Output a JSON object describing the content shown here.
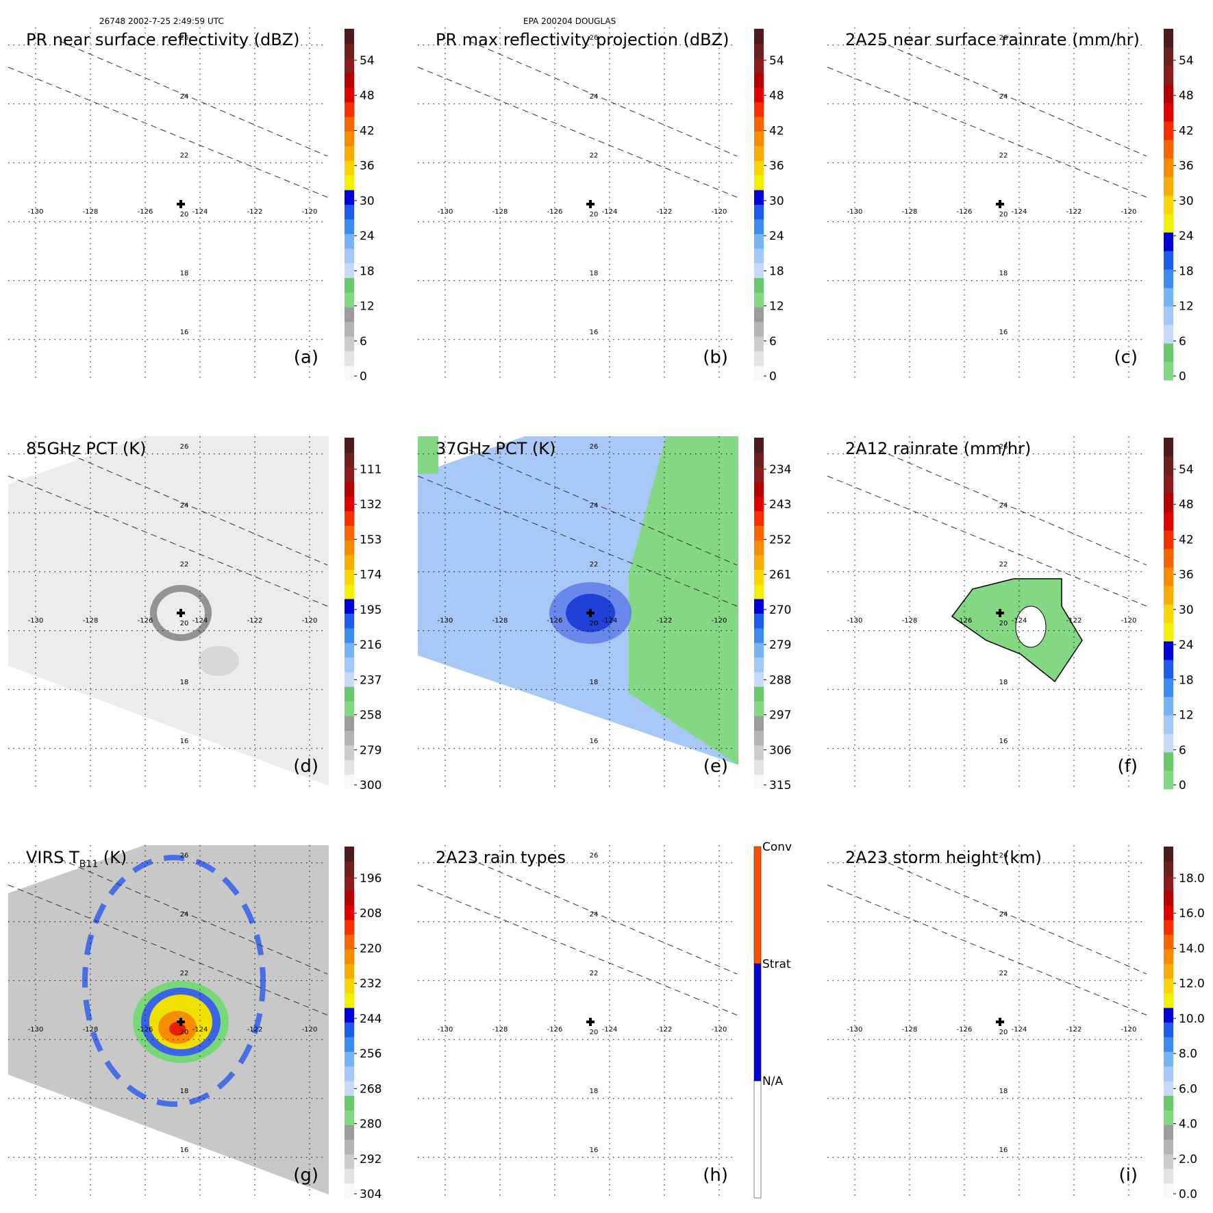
{
  "header": {
    "orbit_time": "26748 2002-7-25 2:49:59 UTC",
    "storm": "EPA 200204 DOUGLAS"
  },
  "center_marker": "plus-icon",
  "panels": [
    {
      "id": "a",
      "title": "PR near surface reflectivity (dBZ)",
      "label": "(a)",
      "field": "blank",
      "colorbar": {
        "type": "reflectivity",
        "ticks": [
          "54",
          "48",
          "42",
          "36",
          "30",
          "24",
          "18",
          "12",
          "6",
          "0"
        ]
      }
    },
    {
      "id": "b",
      "title": "PR max reflectivity projection (dBZ)",
      "label": "(b)",
      "field": "blank",
      "colorbar": {
        "type": "reflectivity",
        "ticks": [
          "54",
          "48",
          "42",
          "36",
          "30",
          "24",
          "18",
          "12",
          "6",
          "0"
        ]
      }
    },
    {
      "id": "c",
      "title": "2A25 near surface rainrate (mm/hr)",
      "label": "(c)",
      "field": "blank",
      "colorbar": {
        "type": "rainrate",
        "ticks": [
          "54",
          "48",
          "42",
          "36",
          "30",
          "24",
          "18",
          "12",
          "6",
          "0"
        ]
      }
    },
    {
      "id": "d",
      "title": "85GHz PCT (K)",
      "label": "(d)",
      "field": "pct85",
      "colorbar": {
        "type": "reflectivity",
        "ticks": [
          "111",
          "132",
          "153",
          "174",
          "195",
          "216",
          "237",
          "258",
          "279",
          "300"
        ]
      }
    },
    {
      "id": "e",
      "title": "37GHz PCT (K)",
      "label": "(e)",
      "field": "pct37",
      "colorbar": {
        "type": "reflectivity",
        "ticks": [
          "234",
          "243",
          "252",
          "261",
          "270",
          "279",
          "288",
          "297",
          "306",
          "315"
        ]
      }
    },
    {
      "id": "f",
      "title": "2A12 rainrate (mm/hr)",
      "label": "(f)",
      "field": "rain2a12",
      "colorbar": {
        "type": "rainrate",
        "ticks": [
          "54",
          "48",
          "42",
          "36",
          "30",
          "24",
          "18",
          "12",
          "6",
          "0"
        ]
      }
    },
    {
      "id": "g",
      "title": "VIRS T",
      "title_sub": "B11",
      "title_after": " (K)",
      "label": "(g)",
      "field": "virs",
      "colorbar": {
        "type": "reflectivity",
        "ticks": [
          "196",
          "208",
          "220",
          "232",
          "244",
          "256",
          "268",
          "280",
          "292",
          "304"
        ]
      }
    },
    {
      "id": "h",
      "title": "2A23 rain types",
      "label": "(h)",
      "field": "blank",
      "colorbar": {
        "type": "raintype",
        "ticks": [
          "Conv",
          "Strat",
          "N/A"
        ]
      }
    },
    {
      "id": "i",
      "title": "2A23 storm height (km)",
      "label": "(i)",
      "field": "blank",
      "colorbar": {
        "type": "height",
        "ticks": [
          "18.0",
          "16.0",
          "14.0",
          "12.0",
          "10.0",
          "8.0",
          "6.0",
          "4.0",
          "2.0",
          "0.0"
        ]
      }
    }
  ],
  "axes": {
    "lon_ticks": [
      "-130",
      "-128",
      "-126",
      "-124",
      "-122",
      "-120"
    ],
    "lat_ticks": [
      "26",
      "24",
      "22",
      "20",
      "18",
      "16"
    ]
  },
  "colors": {
    "reflectivity": [
      "#f8f8f8",
      "#e4e4e4",
      "#cccccc",
      "#b4b4b4",
      "#9c9c9c",
      "#84d884",
      "#6cc86c",
      "#c8d8f8",
      "#a4c8f8",
      "#78b4f4",
      "#3c8cf0",
      "#1e5aec",
      "#0000d8",
      "#f0f000",
      "#f8d400",
      "#f8ac00",
      "#f88c00",
      "#f86400",
      "#f83000",
      "#e00000",
      "#b40000",
      "#8c1c1c",
      "#6c2020",
      "#4c1c1c"
    ],
    "rainrate": [
      "#84d884",
      "#6cc86c",
      "#c8d8f8",
      "#a4c8f8",
      "#78b4f4",
      "#3c8cf0",
      "#1e5aec",
      "#0000d8",
      "#f0f000",
      "#f8d400",
      "#f8ac00",
      "#f88c00",
      "#f86400",
      "#f83000",
      "#e00000",
      "#b40000",
      "#8c1c1c",
      "#6c2020",
      "#4c1c1c"
    ],
    "height": [
      "#f8f8f8",
      "#e4e4e4",
      "#cccccc",
      "#b4b4b4",
      "#9c9c9c",
      "#84d884",
      "#6cc86c",
      "#c8d8f8",
      "#a4c8f8",
      "#78b4f4",
      "#3c8cf0",
      "#1e5aec",
      "#0000d8",
      "#f0f000",
      "#f8d400",
      "#f8ac00",
      "#f88c00",
      "#f86400",
      "#f83000",
      "#e00000",
      "#b40000",
      "#8c1c1c",
      "#6c2020",
      "#4c1c1c"
    ],
    "raintype": [
      "#ffffff",
      "#0000e0",
      "#ff5000"
    ],
    "pct37_field": "#a8c8f8",
    "pct37_core": "#2040d8",
    "pct37_green": "#84d884",
    "pct85_field": "#ececec",
    "pct85_core": "#9a9a9a",
    "virs_field": "#c8c8c8",
    "virs_blue": "#3c64e8",
    "virs_green": "#78d878",
    "virs_yellow": "#f0e000",
    "virs_orange": "#f88c00",
    "virs_red": "#e82000",
    "rain2a12_field": "#84d884"
  },
  "chart_data": [
    {
      "type": "heatmap",
      "panel": "a",
      "title": "PR near surface reflectivity (dBZ)",
      "colorbar_ticks": [
        54,
        48,
        42,
        36,
        30,
        24,
        18,
        12,
        6,
        0
      ],
      "center": {
        "lon": -124.7,
        "lat": 20.6
      }
    },
    {
      "type": "heatmap",
      "panel": "b",
      "title": "PR max reflectivity projection (dBZ)",
      "colorbar_ticks": [
        54,
        48,
        42,
        36,
        30,
        24,
        18,
        12,
        6,
        0
      ],
      "center": {
        "lon": -124.7,
        "lat": 20.6
      }
    },
    {
      "type": "heatmap",
      "panel": "c",
      "title": "2A25 near surface rainrate (mm/hr)",
      "colorbar_ticks": [
        54,
        48,
        42,
        36,
        30,
        24,
        18,
        12,
        6,
        0
      ],
      "center": {
        "lon": -124.7,
        "lat": 20.6
      }
    },
    {
      "type": "heatmap",
      "panel": "d",
      "title": "85GHz PCT (K)",
      "colorbar_ticks": [
        111,
        132,
        153,
        174,
        195,
        216,
        237,
        258,
        279,
        300
      ],
      "center": {
        "lon": -124.7,
        "lat": 20.6
      }
    },
    {
      "type": "heatmap",
      "panel": "e",
      "title": "37GHz PCT (K)",
      "colorbar_ticks": [
        234,
        243,
        252,
        261,
        270,
        279,
        288,
        297,
        306,
        315
      ],
      "center": {
        "lon": -124.7,
        "lat": 20.6
      }
    },
    {
      "type": "heatmap",
      "panel": "f",
      "title": "2A12 rainrate (mm/hr)",
      "colorbar_ticks": [
        54,
        48,
        42,
        36,
        30,
        24,
        18,
        12,
        6,
        0
      ],
      "center": {
        "lon": -124.7,
        "lat": 20.6
      }
    },
    {
      "type": "heatmap",
      "panel": "g",
      "title": "VIRS T B11 (K)",
      "colorbar_ticks": [
        196,
        208,
        220,
        232,
        244,
        256,
        268,
        280,
        292,
        304
      ],
      "center": {
        "lon": -124.7,
        "lat": 20.6
      }
    },
    {
      "type": "heatmap",
      "panel": "h",
      "title": "2A23 rain types",
      "colorbar_ticks": [
        "Conv",
        "Strat",
        "N/A"
      ],
      "center": {
        "lon": -124.7,
        "lat": 20.6
      }
    },
    {
      "type": "heatmap",
      "panel": "i",
      "title": "2A23 storm height (km)",
      "colorbar_ticks": [
        18.0,
        16.0,
        14.0,
        12.0,
        10.0,
        8.0,
        6.0,
        4.0,
        2.0,
        0.0
      ],
      "center": {
        "lon": -124.7,
        "lat": 20.6
      }
    }
  ]
}
